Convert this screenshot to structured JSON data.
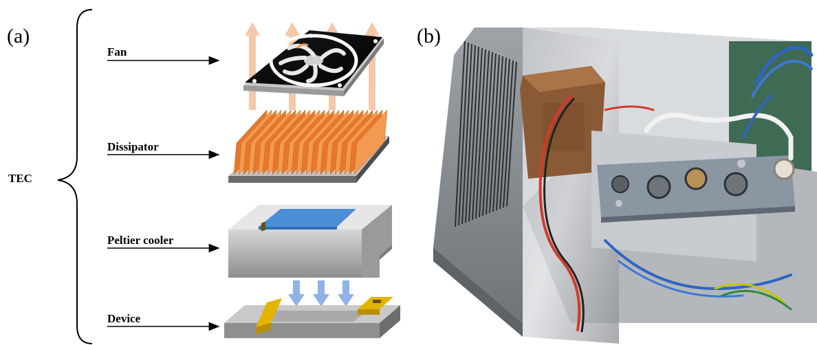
{
  "panel_a": {
    "label": "(a)",
    "group_label": "TEC",
    "parts": [
      {
        "name": "fan",
        "label": "Fan"
      },
      {
        "name": "dissipator",
        "label": "Dissipator"
      },
      {
        "name": "peltier",
        "label": "Peltier cooler"
      },
      {
        "name": "device",
        "label": "Device"
      }
    ]
  },
  "panel_b": {
    "label": "(b)"
  },
  "colors": {
    "heat_arrow": "#f5c6a8",
    "fin": "#f08a3c",
    "peltier_top": "#4a8ed8",
    "cool_arrow": "#8fb3e6",
    "device_yellow": "#e2b400"
  }
}
